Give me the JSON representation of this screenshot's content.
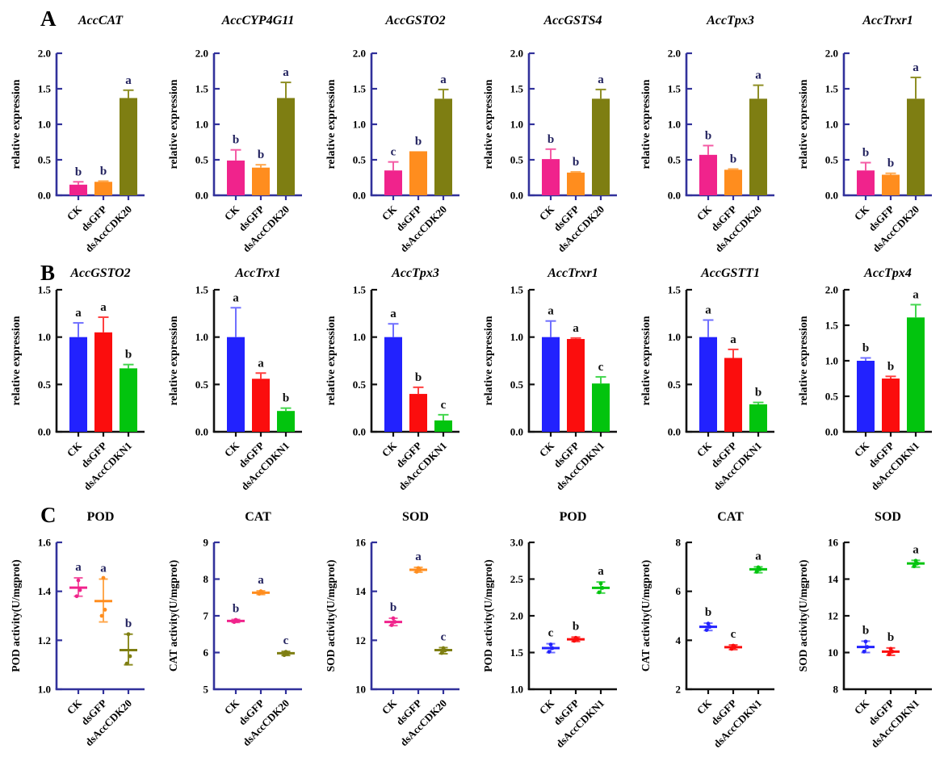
{
  "figure": {
    "panels": {
      "A": {
        "label": "A"
      },
      "B": {
        "label": "B"
      },
      "C": {
        "label": "C"
      }
    }
  },
  "colors": {
    "axis_navy": "#31319B",
    "axis_black": "#111111",
    "letter_navy": "#23235F",
    "letter_black": "#111111",
    "series": {
      "pink": {
        "main": "#F0238C",
        "err": "#F45CA5"
      },
      "orange": {
        "main": "#FF8D1E",
        "err": "#FFA94F"
      },
      "olive": {
        "main": "#7E7E12",
        "err": "#8F8F25"
      },
      "blue": {
        "main": "#2222FE",
        "err": "#7070FF"
      },
      "red": {
        "main": "#FB0D0D",
        "err": "#FF4040"
      },
      "green": {
        "main": "#02C40E",
        "err": "#44D64F"
      }
    }
  },
  "chart_data": [
    {
      "panel": "A",
      "type": "bar",
      "title": "AccCAT",
      "title_italic": true,
      "theme": "navy",
      "ylabel": "relative expression",
      "ylim": [
        0,
        2
      ],
      "yticks": [
        0,
        0.5,
        1,
        1.5,
        2
      ],
      "ytick_labels": [
        "0.0",
        "0.5",
        "1.0",
        "1.5",
        "2.0"
      ],
      "categories": [
        "CK",
        "dsGFP",
        "dsAccCDK20"
      ],
      "colors": [
        "pink",
        "orange",
        "olive"
      ],
      "values": [
        0.15,
        0.19,
        1.37
      ],
      "errors": [
        0.04,
        0.01,
        0.11
      ],
      "letters": [
        "b",
        "b",
        "a"
      ]
    },
    {
      "panel": "A",
      "type": "bar",
      "title": "AccCYP4G11",
      "title_italic": true,
      "theme": "navy",
      "ylabel": "relative expression",
      "ylim": [
        0,
        2
      ],
      "yticks": [
        0,
        0.5,
        1,
        1.5,
        2
      ],
      "ytick_labels": [
        "0.0",
        "0.5",
        "1.0",
        "1.5",
        "2.0"
      ],
      "categories": [
        "CK",
        "dsGFP",
        "dsAccCDK20"
      ],
      "colors": [
        "pink",
        "orange",
        "olive"
      ],
      "values": [
        0.49,
        0.39,
        1.37
      ],
      "errors": [
        0.15,
        0.04,
        0.22
      ],
      "letters": [
        "b",
        "b",
        "a"
      ]
    },
    {
      "panel": "A",
      "type": "bar",
      "title": "AccGSTO2",
      "title_italic": true,
      "theme": "navy",
      "ylabel": "relative expression",
      "ylim": [
        0,
        2
      ],
      "yticks": [
        0,
        0.5,
        1,
        1.5,
        2
      ],
      "ytick_labels": [
        "0.0",
        "0.5",
        "1.0",
        "1.5",
        "2.0"
      ],
      "categories": [
        "CK",
        "dsGFP",
        "dsAccCDK20"
      ],
      "colors": [
        "pink",
        "orange",
        "olive"
      ],
      "values": [
        0.35,
        0.62,
        1.36
      ],
      "errors": [
        0.12,
        0,
        0.13
      ],
      "letters": [
        "c",
        "b",
        "a"
      ]
    },
    {
      "panel": "A",
      "type": "bar",
      "title": "AccGSTS4",
      "title_italic": true,
      "theme": "navy",
      "ylabel": "relative expression",
      "ylim": [
        0,
        2
      ],
      "yticks": [
        0,
        0.5,
        1,
        1.5,
        2
      ],
      "ytick_labels": [
        "0.0",
        "0.5",
        "1.0",
        "1.5",
        "2.0"
      ],
      "categories": [
        "CK",
        "dsGFP",
        "dsAccCDK20"
      ],
      "colors": [
        "pink",
        "orange",
        "olive"
      ],
      "values": [
        0.51,
        0.32,
        1.36
      ],
      "errors": [
        0.14,
        0.01,
        0.13
      ],
      "letters": [
        "b",
        "b",
        "a"
      ]
    },
    {
      "panel": "A",
      "type": "bar",
      "title": "AccTpx3",
      "title_italic": true,
      "theme": "navy",
      "ylabel": "relative expression",
      "ylim": [
        0,
        2
      ],
      "yticks": [
        0,
        0.5,
        1,
        1.5,
        2
      ],
      "ytick_labels": [
        "0.0",
        "0.5",
        "1.0",
        "1.5",
        "2.0"
      ],
      "categories": [
        "CK",
        "dsGFP",
        "dsAccCDK20"
      ],
      "colors": [
        "pink",
        "orange",
        "olive"
      ],
      "values": [
        0.57,
        0.36,
        1.36
      ],
      "errors": [
        0.13,
        0.01,
        0.19
      ],
      "letters": [
        "b",
        "b",
        "a"
      ]
    },
    {
      "panel": "A",
      "type": "bar",
      "title": "AccTrxr1",
      "title_italic": true,
      "theme": "navy",
      "ylabel": "relative expression",
      "ylim": [
        0,
        2
      ],
      "yticks": [
        0,
        0.5,
        1,
        1.5,
        2
      ],
      "ytick_labels": [
        "0.0",
        "0.5",
        "1.0",
        "1.5",
        "2.0"
      ],
      "categories": [
        "CK",
        "dsGFP",
        "dsAccCDK20"
      ],
      "colors": [
        "pink",
        "orange",
        "olive"
      ],
      "values": [
        0.35,
        0.29,
        1.36
      ],
      "errors": [
        0.11,
        0.02,
        0.3
      ],
      "letters": [
        "b",
        "b",
        "a"
      ]
    },
    {
      "panel": "B",
      "type": "bar",
      "title": "AccGSTO2",
      "title_italic": true,
      "theme": "black",
      "ylabel": "relative expression",
      "ylim": [
        0,
        1.5
      ],
      "yticks": [
        0,
        0.5,
        1,
        1.5
      ],
      "ytick_labels": [
        "0.0",
        "0.5",
        "1.0",
        "1.5"
      ],
      "categories": [
        "CK",
        "dsGFP",
        "dsAccCDKN1"
      ],
      "colors": [
        "blue",
        "red",
        "green"
      ],
      "values": [
        1.0,
        1.05,
        0.67
      ],
      "errors": [
        0.15,
        0.16,
        0.04
      ],
      "letters": [
        "a",
        "a",
        "b"
      ]
    },
    {
      "panel": "B",
      "type": "bar",
      "title": "AccTrx1",
      "title_italic": true,
      "theme": "black",
      "ylabel": "relative expression",
      "ylim": [
        0,
        1.5
      ],
      "yticks": [
        0,
        0.5,
        1,
        1.5
      ],
      "ytick_labels": [
        "0.0",
        "0.5",
        "1.0",
        "1.5"
      ],
      "categories": [
        "CK",
        "dsGFP",
        "dsAccCDKN1"
      ],
      "colors": [
        "blue",
        "red",
        "green"
      ],
      "values": [
        1.0,
        0.56,
        0.22
      ],
      "errors": [
        0.31,
        0.06,
        0.03
      ],
      "letters": [
        "a",
        "a",
        "b"
      ]
    },
    {
      "panel": "B",
      "type": "bar",
      "title": "AccTpx3",
      "title_italic": true,
      "theme": "black",
      "ylabel": "relative expression",
      "ylim": [
        0,
        1.5
      ],
      "yticks": [
        0,
        0.5,
        1,
        1.5
      ],
      "ytick_labels": [
        "0.0",
        "0.5",
        "1.0",
        "1.5"
      ],
      "categories": [
        "CK",
        "dsGFP",
        "dsAccCDKN1"
      ],
      "colors": [
        "blue",
        "red",
        "green"
      ],
      "values": [
        1.0,
        0.4,
        0.12
      ],
      "errors": [
        0.14,
        0.07,
        0.06
      ],
      "letters": [
        "a",
        "b",
        "c"
      ]
    },
    {
      "panel": "B",
      "type": "bar",
      "title": "AccTrxr1",
      "title_italic": true,
      "theme": "black",
      "ylabel": "relative expression",
      "ylim": [
        0,
        1.5
      ],
      "yticks": [
        0,
        0.5,
        1,
        1.5
      ],
      "ytick_labels": [
        "0.0",
        "0.5",
        "1.0",
        "1.5"
      ],
      "categories": [
        "CK",
        "dsGFP",
        "dsAccCDKN1"
      ],
      "colors": [
        "blue",
        "red",
        "green"
      ],
      "values": [
        1.0,
        0.98,
        0.51
      ],
      "errors": [
        0.17,
        0.01,
        0.07
      ],
      "letters": [
        "a",
        "a",
        "c"
      ]
    },
    {
      "panel": "B",
      "type": "bar",
      "title": "AccGSTT1",
      "title_italic": true,
      "theme": "black",
      "ylabel": "relative expression",
      "ylim": [
        0,
        1.5
      ],
      "yticks": [
        0,
        0.5,
        1,
        1.5
      ],
      "ytick_labels": [
        "0.0",
        "0.5",
        "1.0",
        "1.5"
      ],
      "categories": [
        "CK",
        "dsGFP",
        "dsAccCDKN1"
      ],
      "colors": [
        "blue",
        "red",
        "green"
      ],
      "values": [
        1.0,
        0.78,
        0.29
      ],
      "errors": [
        0.18,
        0.09,
        0.02
      ],
      "letters": [
        "a",
        "a",
        "b"
      ]
    },
    {
      "panel": "B",
      "type": "bar",
      "title": "AccTpx4",
      "title_italic": true,
      "theme": "black",
      "ylabel": "relative expression",
      "ylim": [
        0,
        2
      ],
      "yticks": [
        0,
        0.5,
        1,
        1.5,
        2
      ],
      "ytick_labels": [
        "0.0",
        "0.5",
        "1.0",
        "1.5",
        "2.0"
      ],
      "categories": [
        "CK",
        "dsGFP",
        "dsAccCDKN1"
      ],
      "colors": [
        "blue",
        "red",
        "green"
      ],
      "values": [
        1.0,
        0.75,
        1.61
      ],
      "errors": [
        0.04,
        0.03,
        0.18
      ],
      "letters": [
        "b",
        "b",
        "a"
      ]
    },
    {
      "panel": "C",
      "type": "scatter",
      "title": "POD",
      "title_italic": false,
      "theme": "navy",
      "ylabel": "POD activity(U/mgprot)",
      "ylim": [
        1.0,
        1.6
      ],
      "yticks": [
        1.0,
        1.2,
        1.4,
        1.6
      ],
      "ytick_labels": [
        "1.0",
        "1.2",
        "1.4",
        "1.6"
      ],
      "categories": [
        "CK",
        "dsGFP",
        "dsAccCDK20"
      ],
      "colors": [
        "pink",
        "orange",
        "olive"
      ],
      "means": [
        1.415,
        1.36,
        1.16
      ],
      "err_low": [
        1.38,
        1.275,
        1.1
      ],
      "err_high": [
        1.455,
        1.45,
        1.225
      ],
      "points": [
        [
          1.38,
          1.405,
          1.445
        ],
        [
          1.3,
          1.325,
          1.455
        ],
        [
          1.105,
          1.135,
          1.225
        ]
      ],
      "letters": [
        "a",
        "a",
        "b"
      ]
    },
    {
      "panel": "C",
      "type": "scatter",
      "title": "CAT",
      "title_italic": false,
      "theme": "navy",
      "ylabel": "CAT activity(U/mgprot)",
      "ylim": [
        5,
        9
      ],
      "yticks": [
        5,
        6,
        7,
        8,
        9
      ],
      "ytick_labels": [
        "5",
        "6",
        "7",
        "8",
        "9"
      ],
      "categories": [
        "CK",
        "dsGFP",
        "dsAccCDK20"
      ],
      "colors": [
        "pink",
        "orange",
        "olive"
      ],
      "means": [
        6.86,
        7.63,
        5.98
      ],
      "err_low": [
        6.82,
        7.58,
        5.92
      ],
      "err_high": [
        6.9,
        7.68,
        6.03
      ],
      "points": [
        [
          6.83,
          6.86,
          6.89
        ],
        [
          7.6,
          7.63,
          7.67
        ],
        [
          5.93,
          5.97,
          6.02
        ]
      ],
      "letters": [
        "b",
        "a",
        "c"
      ]
    },
    {
      "panel": "C",
      "type": "scatter",
      "title": "SOD",
      "title_italic": false,
      "theme": "navy",
      "ylabel": "SOD activity(U/mgprot)",
      "ylim": [
        10,
        16
      ],
      "yticks": [
        10,
        12,
        14,
        16
      ],
      "ytick_labels": [
        "10",
        "12",
        "14",
        "16"
      ],
      "categories": [
        "CK",
        "dsGFP",
        "dsAccCDK20"
      ],
      "colors": [
        "pink",
        "orange",
        "olive"
      ],
      "means": [
        12.75,
        14.88,
        11.6
      ],
      "err_low": [
        12.6,
        14.78,
        11.45
      ],
      "err_high": [
        12.9,
        14.98,
        11.7
      ],
      "points": [
        [
          12.62,
          12.75,
          12.9
        ],
        [
          14.8,
          14.88,
          14.95
        ],
        [
          11.48,
          11.58,
          11.68
        ]
      ],
      "letters": [
        "b",
        "a",
        "c"
      ]
    },
    {
      "panel": "C",
      "type": "scatter",
      "title": "POD",
      "title_italic": false,
      "theme": "black",
      "ylabel": "POD activity(U/mgprot)",
      "ylim": [
        1.0,
        3.0
      ],
      "yticks": [
        1.0,
        1.5,
        2.0,
        2.5,
        3.0
      ],
      "ytick_labels": [
        "1.0",
        "1.5",
        "2.0",
        "2.5",
        "3.0"
      ],
      "categories": [
        "CK",
        "dsGFP",
        "dsAccCDKN1"
      ],
      "colors": [
        "blue",
        "red",
        "green"
      ],
      "means": [
        1.56,
        1.68,
        2.38
      ],
      "err_low": [
        1.5,
        1.65,
        2.31
      ],
      "err_high": [
        1.62,
        1.71,
        2.46
      ],
      "points": [
        [
          1.51,
          1.56,
          1.61
        ],
        [
          1.66,
          1.68,
          1.7
        ],
        [
          2.32,
          2.38,
          2.44
        ]
      ],
      "letters": [
        "c",
        "b",
        "a"
      ]
    },
    {
      "panel": "C",
      "type": "scatter",
      "title": "CAT",
      "title_italic": false,
      "theme": "black",
      "ylabel": "CAT activity(U/mgprot)",
      "ylim": [
        2,
        8
      ],
      "yticks": [
        2,
        4,
        6,
        8
      ],
      "ytick_labels": [
        "2",
        "4",
        "6",
        "8"
      ],
      "categories": [
        "CK",
        "dsGFP",
        "dsAccCDKN1"
      ],
      "colors": [
        "blue",
        "red",
        "green"
      ],
      "means": [
        4.55,
        3.72,
        6.9
      ],
      "err_low": [
        4.4,
        3.62,
        6.76
      ],
      "err_high": [
        4.7,
        3.81,
        7.0
      ],
      "points": [
        [
          4.42,
          4.55,
          4.68
        ],
        [
          3.65,
          3.72,
          3.78
        ],
        [
          6.8,
          6.9,
          6.98
        ]
      ],
      "letters": [
        "b",
        "c",
        "a"
      ]
    },
    {
      "panel": "C",
      "type": "scatter",
      "title": "SOD",
      "title_italic": false,
      "theme": "black",
      "ylabel": "SOD activity(U/mgprot)",
      "ylim": [
        8,
        16
      ],
      "yticks": [
        8,
        10,
        12,
        14,
        16
      ],
      "ytick_labels": [
        "8",
        "10",
        "12",
        "14",
        "16"
      ],
      "categories": [
        "CK",
        "dsGFP",
        "dsAccCDKN1"
      ],
      "colors": [
        "blue",
        "red",
        "green"
      ],
      "means": [
        10.3,
        10.05,
        14.85
      ],
      "err_low": [
        10.0,
        9.85,
        14.65
      ],
      "err_high": [
        10.62,
        10.25,
        15.02
      ],
      "points": [
        [
          10.05,
          10.3,
          10.6
        ],
        [
          9.9,
          10.05,
          10.2
        ],
        [
          14.7,
          14.85,
          15.0
        ]
      ],
      "letters": [
        "b",
        "b",
        "a"
      ]
    }
  ]
}
